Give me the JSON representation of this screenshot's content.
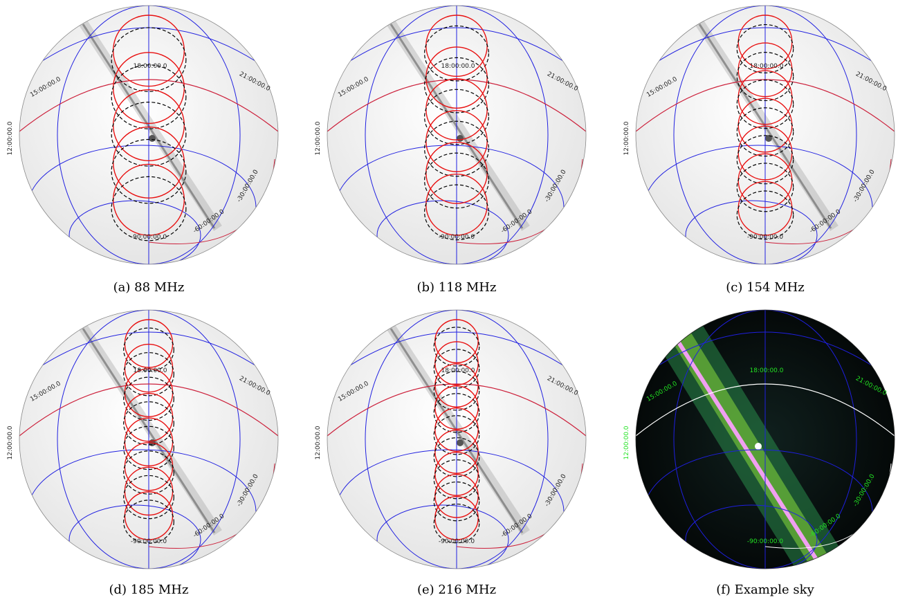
{
  "colors": {
    "grid": "#1f1fe0",
    "equator": "#cc1f3a",
    "beam_model": "#e81010",
    "beam_measured": "#000000",
    "label_light": "#222222",
    "label_dark": "#22e322"
  },
  "grid_labels": {
    "ra_center": "18:00:00.0",
    "ra_left": "15:00:00.0",
    "ra_right": "21:00:00.0",
    "ra_edge": "12:00:00.0",
    "dec_30": "-30:00:00.0",
    "dec_60": "-60:00:00.0",
    "dec_90": "-90:00:00.0"
  },
  "panels": [
    {
      "caption": "(a) 88 MHz",
      "style": "light",
      "beams": 5
    },
    {
      "caption": "(b) 118 MHz",
      "style": "light",
      "beams": 6
    },
    {
      "caption": "(c) 154 MHz",
      "style": "light",
      "beams": 7
    },
    {
      "caption": "(d) 185 MHz",
      "style": "light",
      "beams": 8
    },
    {
      "caption": "(e) 216 MHz",
      "style": "light",
      "beams": 9
    },
    {
      "caption": "(f) Example sky",
      "style": "dark",
      "beams": 0
    }
  ]
}
